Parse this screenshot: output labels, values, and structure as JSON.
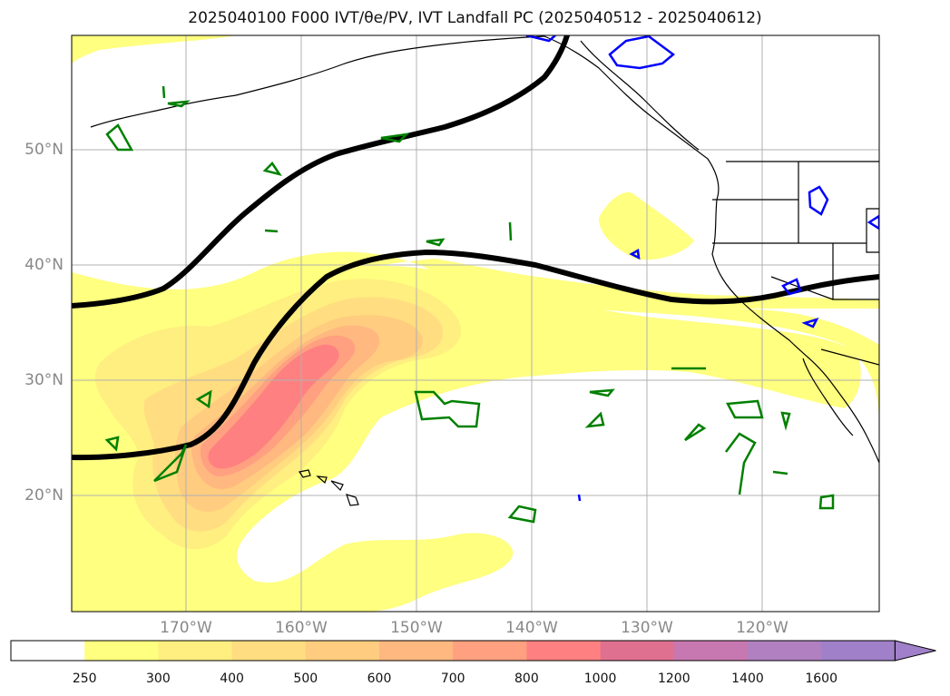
{
  "title": "2025040100 F000 IVT/θe/PV, IVT Landfall PC (2025040512 - 2025040612)",
  "map": {
    "lat_labels": [
      "50°N",
      "40°N",
      "30°N",
      "20°N"
    ],
    "lon_labels": [
      "170°W",
      "160°W",
      "150°W",
      "140°W",
      "130°W",
      "120°W"
    ],
    "ivt_units_colorbar": {
      "ticks": [
        "250",
        "300",
        "400",
        "500",
        "600",
        "700",
        "800",
        "1000",
        "1200",
        "1400",
        "1600"
      ],
      "colors": [
        "#ffffff",
        "#ffff80",
        "#ffee80",
        "#ffdd80",
        "#ffcc80",
        "#ffb880",
        "#ffa080",
        "#ff8080",
        "#e07090",
        "#c878b0",
        "#b080c0",
        "#a080c8"
      ],
      "extend": "max"
    },
    "contour_colors": {
      "pv": "#000000",
      "theta_e_pos": "#008000",
      "theta_e_neg": "#0000ff"
    }
  }
}
